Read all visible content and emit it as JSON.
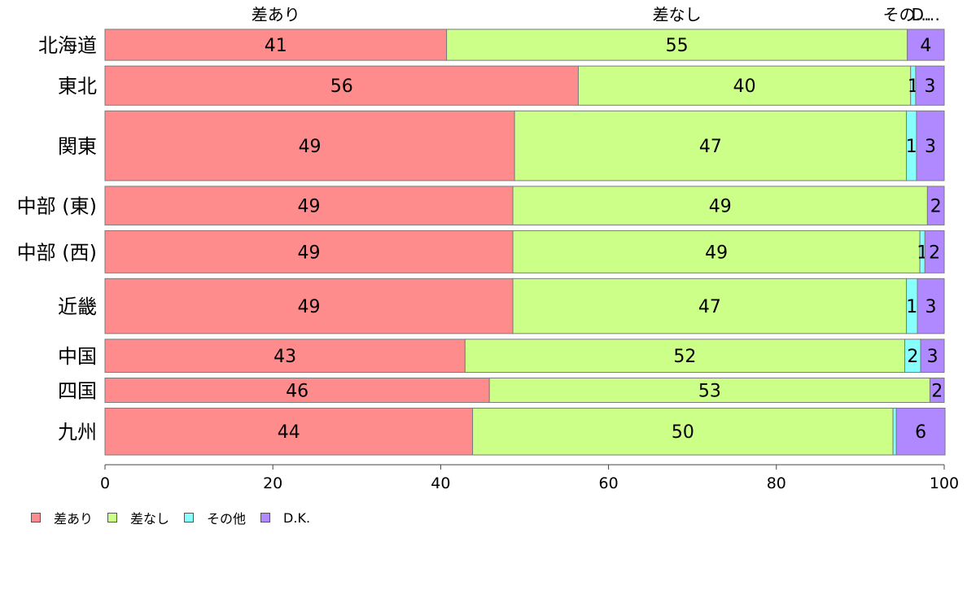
{
  "chart_data": {
    "type": "bar",
    "orientation": "horizontal",
    "stacked": true,
    "categories": [
      "北海道",
      "東北",
      "関東",
      "中部 (東)",
      "中部 (西)",
      "近畿",
      "中国",
      "四国",
      "九州"
    ],
    "series": [
      {
        "name": "差あり",
        "color": "#FF8C8C",
        "values": [
          40.7,
          56.4,
          48.8,
          48.6,
          48.6,
          48.6,
          42.9,
          45.8,
          43.8
        ]
      },
      {
        "name": "差なし",
        "color": "#CCFF88",
        "values": [
          54.9,
          39.6,
          46.7,
          49.4,
          48.5,
          46.9,
          52.4,
          52.5,
          50.1
        ]
      },
      {
        "name": "その他",
        "color": "#88FFFF",
        "values": [
          0.0,
          0.6,
          1.2,
          0.0,
          0.6,
          1.3,
          1.9,
          0.0,
          0.4
        ]
      },
      {
        "name": "D.K.",
        "color": "#B088FF",
        "values": [
          4.4,
          3.4,
          3.3,
          2.0,
          2.3,
          3.2,
          2.8,
          1.7,
          5.8
        ]
      }
    ],
    "data_labels": [
      [
        "41",
        "55",
        "",
        "4"
      ],
      [
        "56",
        "40",
        "1",
        "3"
      ],
      [
        "49",
        "47",
        "1",
        "3"
      ],
      [
        "49",
        "49",
        "",
        "2"
      ],
      [
        "49",
        "49",
        "1",
        "2"
      ],
      [
        "49",
        "47",
        "1",
        "3"
      ],
      [
        "43",
        "52",
        "2",
        "3"
      ],
      [
        "46",
        "53",
        "",
        "2"
      ],
      [
        "44",
        "50",
        "",
        "6"
      ]
    ],
    "top_labels": [
      "差あり",
      "差なし",
      "その他",
      "D.K."
    ],
    "top_labels_display": [
      "差あり",
      "差なし",
      "その…",
      "D…"
    ],
    "row_weights": [
      61,
      77,
      137,
      76,
      83,
      108,
      65,
      48,
      92
    ],
    "xlim": [
      0,
      100
    ],
    "xticks": [
      "0",
      "20",
      "40",
      "60",
      "80",
      "100"
    ],
    "xlabel": "",
    "ylabel": "",
    "title": "",
    "grid": false,
    "legend_position": "bottom-left"
  }
}
